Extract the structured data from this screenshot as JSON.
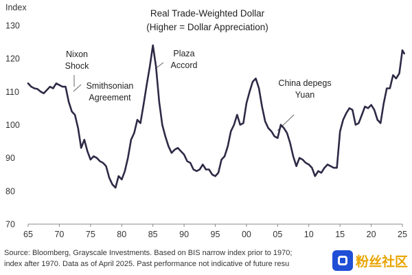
{
  "chart_data": {
    "type": "line",
    "title": "Real Trade-Weighted Dollar",
    "subtitle": "(Higher = Dollar Appreciation)",
    "ylabel": "Index",
    "xlabel": "",
    "xlim": [
      1965,
      2025
    ],
    "ylim": [
      70,
      130
    ],
    "yticks": [
      70,
      80,
      90,
      100,
      110,
      120,
      130
    ],
    "xticks": [
      1965,
      1970,
      1975,
      1980,
      1985,
      1990,
      1995,
      2000,
      2005,
      2010,
      2015,
      2020,
      2025
    ],
    "xtick_labels": [
      "65",
      "70",
      "75",
      "80",
      "85",
      "90",
      "95",
      "00",
      "05",
      "10",
      "15",
      "20",
      "25"
    ],
    "grid": false,
    "series": [
      {
        "color": "#2e2945",
        "x": [
          1965.0,
          1965.5,
          1966.0,
          1966.5,
          1967.0,
          1967.5,
          1968.0,
          1968.5,
          1969.0,
          1969.5,
          1970.0,
          1970.5,
          1971.0,
          1971.5,
          1972.0,
          1972.5,
          1973.0,
          1973.5,
          1974.0,
          1974.5,
          1975.0,
          1975.5,
          1976.0,
          1976.5,
          1977.0,
          1977.5,
          1978.0,
          1978.5,
          1979.0,
          1979.5,
          1980.0,
          1980.5,
          1981.0,
          1981.5,
          1982.0,
          1982.5,
          1983.0,
          1983.5,
          1984.0,
          1984.5,
          1985.0,
          1985.5,
          1986.0,
          1986.5,
          1987.0,
          1987.5,
          1988.0,
          1988.5,
          1989.0,
          1989.5,
          1990.0,
          1990.5,
          1991.0,
          1991.5,
          1992.0,
          1992.5,
          1993.0,
          1993.5,
          1994.0,
          1994.5,
          1995.0,
          1995.5,
          1996.0,
          1996.5,
          1997.0,
          1997.5,
          1998.0,
          1998.5,
          1999.0,
          1999.5,
          2000.0,
          2000.5,
          2001.0,
          2001.5,
          2002.0,
          2002.5,
          2003.0,
          2003.5,
          2004.0,
          2004.5,
          2005.0,
          2005.5,
          2006.0,
          2006.5,
          2007.0,
          2007.5,
          2008.0,
          2008.5,
          2009.0,
          2009.5,
          2010.0,
          2010.5,
          2011.0,
          2011.5,
          2012.0,
          2012.5,
          2013.0,
          2013.5,
          2014.0,
          2014.5,
          2015.0,
          2015.5,
          2016.0,
          2016.5,
          2017.0,
          2017.5,
          2018.0,
          2018.5,
          2019.0,
          2019.5,
          2020.0,
          2020.5,
          2021.0,
          2021.5,
          2022.0,
          2022.5,
          2023.0,
          2023.5,
          2024.0,
          2024.5,
          2025.0,
          2025.3
        ],
        "y": [
          112.5,
          111.5,
          111.0,
          110.8,
          110.0,
          109.5,
          110.5,
          111.5,
          111.0,
          112.5,
          112.0,
          111.5,
          111.5,
          107.0,
          104.0,
          103.0,
          99.0,
          93.0,
          95.5,
          92.0,
          89.5,
          90.5,
          90.0,
          89.0,
          88.5,
          87.5,
          84.0,
          82.0,
          81.0,
          84.5,
          83.5,
          86.0,
          90.0,
          95.5,
          97.5,
          101.5,
          100.5,
          106.0,
          112.0,
          117.5,
          124.0,
          117.5,
          107.0,
          100.0,
          96.5,
          93.5,
          91.5,
          92.5,
          93.0,
          92.0,
          91.0,
          89.0,
          88.5,
          86.5,
          86.0,
          86.5,
          88.0,
          86.5,
          86.5,
          85.0,
          84.5,
          85.5,
          89.5,
          90.5,
          93.5,
          98.0,
          100.0,
          103.0,
          100.0,
          100.5,
          106.5,
          110.0,
          113.0,
          114.0,
          111.0,
          105.5,
          101.0,
          99.0,
          98.0,
          96.5,
          96.0,
          100.0,
          99.0,
          97.5,
          94.5,
          90.5,
          87.5,
          90.0,
          89.5,
          88.5,
          88.0,
          87.0,
          84.5,
          86.0,
          85.5,
          87.0,
          88.0,
          87.5,
          87.0,
          87.0,
          98.0,
          101.5,
          103.5,
          105.0,
          104.5,
          100.0,
          100.5,
          103.0,
          105.5,
          105.0,
          106.0,
          104.5,
          101.5,
          100.5,
          106.5,
          111.0,
          111.0,
          115.0,
          114.0,
          115.5,
          122.5,
          121.5
        ]
      }
    ],
    "annotations": [
      {
        "lines": [
          "Nixon",
          "Shock"
        ],
        "x": 1971.0,
        "y": 112.0
      },
      {
        "lines": [
          "Smithsonian",
          "Agreement"
        ],
        "x": 1972.0,
        "y": 108.5
      },
      {
        "lines": [
          "Plaza",
          "Accord"
        ],
        "x": 1985.3,
        "y": 118.0
      },
      {
        "lines": [
          "China depegs",
          "Yuan"
        ],
        "x": 2005.3,
        "y": 99.0
      }
    ]
  },
  "footer": {
    "line1": "Source: Bloomberg, Grayscale Investments. Based on BIS narrow index prior to 1970;",
    "line2": "index after 1970. Data as of April 2025. Past performance not indicative of future resu"
  },
  "watermark": {
    "text": "粉丝社区",
    "brand_color": "#1f4fd6",
    "text_color": "#e8a400"
  }
}
